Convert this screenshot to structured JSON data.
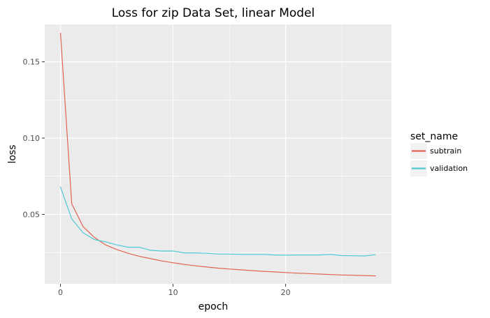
{
  "chart_data": {
    "type": "line",
    "title": "Loss for zip Data Set, linear Model",
    "xlabel": "epoch",
    "ylabel": "loss",
    "xlim": [
      -1.4,
      29.4
    ],
    "ylim": [
      0.0045,
      0.1745
    ],
    "xticks": [
      0,
      10,
      20
    ],
    "yticks": [
      0.05,
      0.1,
      0.15
    ],
    "xtick_labels": [
      "0",
      "10",
      "20"
    ],
    "ytick_labels": [
      "0.05",
      "0.10",
      "0.15"
    ],
    "grid": true,
    "legend": {
      "title": "set_name",
      "placement": "right"
    },
    "x": [
      0,
      1,
      2,
      3,
      4,
      5,
      6,
      7,
      8,
      9,
      10,
      11,
      12,
      13,
      14,
      15,
      16,
      17,
      18,
      19,
      20,
      21,
      22,
      23,
      24,
      25,
      26,
      27,
      28
    ],
    "series": [
      {
        "name": "subtrain",
        "color": "#E1634F",
        "values": [
          0.169,
          0.057,
          0.042,
          0.035,
          0.03,
          0.027,
          0.0245,
          0.0225,
          0.021,
          0.0195,
          0.0183,
          0.0172,
          0.0163,
          0.0155,
          0.0148,
          0.0142,
          0.0137,
          0.0132,
          0.0127,
          0.0123,
          0.0119,
          0.0115,
          0.0112,
          0.0109,
          0.0106,
          0.0103,
          0.0101,
          0.0099,
          0.0097
        ]
      },
      {
        "name": "validation",
        "color": "#4FC9D3",
        "values": [
          0.068,
          0.047,
          0.038,
          0.0335,
          0.032,
          0.03,
          0.0285,
          0.0285,
          0.0265,
          0.026,
          0.026,
          0.0248,
          0.0248,
          0.0245,
          0.024,
          0.024,
          0.0238,
          0.0238,
          0.0238,
          0.0234,
          0.0233,
          0.0234,
          0.0234,
          0.0234,
          0.0238,
          0.023,
          0.0229,
          0.0228,
          0.0236
        ]
      }
    ]
  }
}
